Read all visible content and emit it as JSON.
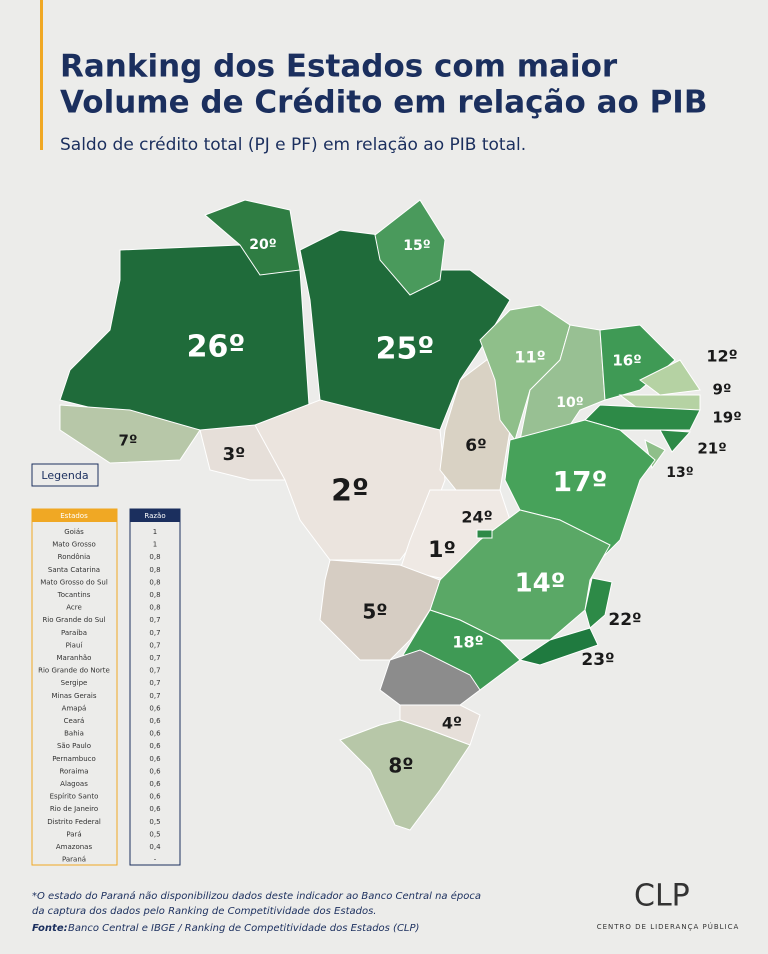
{
  "header": {
    "title_lines": [
      "Ranking dos Estados com maior",
      "Volume de Crédito em relação ao PIB"
    ],
    "subtitle": "Saldo de crédito total (PJ e PF) em relação ao PIB total."
  },
  "map": {
    "labels": [
      "26º",
      "25º",
      "20º",
      "15º",
      "11º",
      "10º",
      "16º",
      "12º",
      "9º",
      "19º",
      "21º",
      "13º",
      "7º",
      "3º",
      "2º",
      "6º",
      "17º",
      "24º",
      "1º",
      "14º",
      "5º",
      "18º",
      "22º",
      "23º",
      "4º",
      "8º"
    ]
  },
  "legend": {
    "title": "Legenda",
    "headers": [
      "Estados",
      "Razão"
    ],
    "rows": [
      [
        "Goiás",
        "1"
      ],
      [
        "Mato Grosso",
        "1"
      ],
      [
        "Rondônia",
        "0,8"
      ],
      [
        "Santa Catarina",
        "0,8"
      ],
      [
        "Mato Grosso do Sul",
        "0,8"
      ],
      [
        "Tocantins",
        "0,8"
      ],
      [
        "Acre",
        "0,8"
      ],
      [
        "Rio Grande do Sul",
        "0,7"
      ],
      [
        "Paraíba",
        "0,7"
      ],
      [
        "Piauí",
        "0,7"
      ],
      [
        "Maranhão",
        "0,7"
      ],
      [
        "Rio Grande do Norte",
        "0,7"
      ],
      [
        "Sergipe",
        "0,7"
      ],
      [
        "Minas Gerais",
        "0,7"
      ],
      [
        "Amapá",
        "0,6"
      ],
      [
        "Ceará",
        "0,6"
      ],
      [
        "Bahia",
        "0,6"
      ],
      [
        "São Paulo",
        "0,6"
      ],
      [
        "Pernambuco",
        "0,6"
      ],
      [
        "Roraima",
        "0,6"
      ],
      [
        "Alagoas",
        "0,6"
      ],
      [
        "Espírito Santo",
        "0,6"
      ],
      [
        "Rio de Janeiro",
        "0,6"
      ],
      [
        "Distrito Federal",
        "0,5"
      ],
      [
        "Pará",
        "0,5"
      ],
      [
        "Amazonas",
        "0,4"
      ],
      [
        "Paraná",
        "-"
      ]
    ]
  },
  "footnote": [
    "*O estado do Paraná não disponibilizou dados deste indicador ao Banco Central na época",
    "da captura dos dados pelo Ranking de Competitividade dos Estados."
  ],
  "source": {
    "label": "Fonte:",
    "text": "Banco Central e IBGE / Ranking de Competitividade dos Estados (CLP)"
  },
  "logo": {
    "name": "CLP",
    "tagline": "CENTRO DE LIDERANÇA PÚBLICA"
  }
}
